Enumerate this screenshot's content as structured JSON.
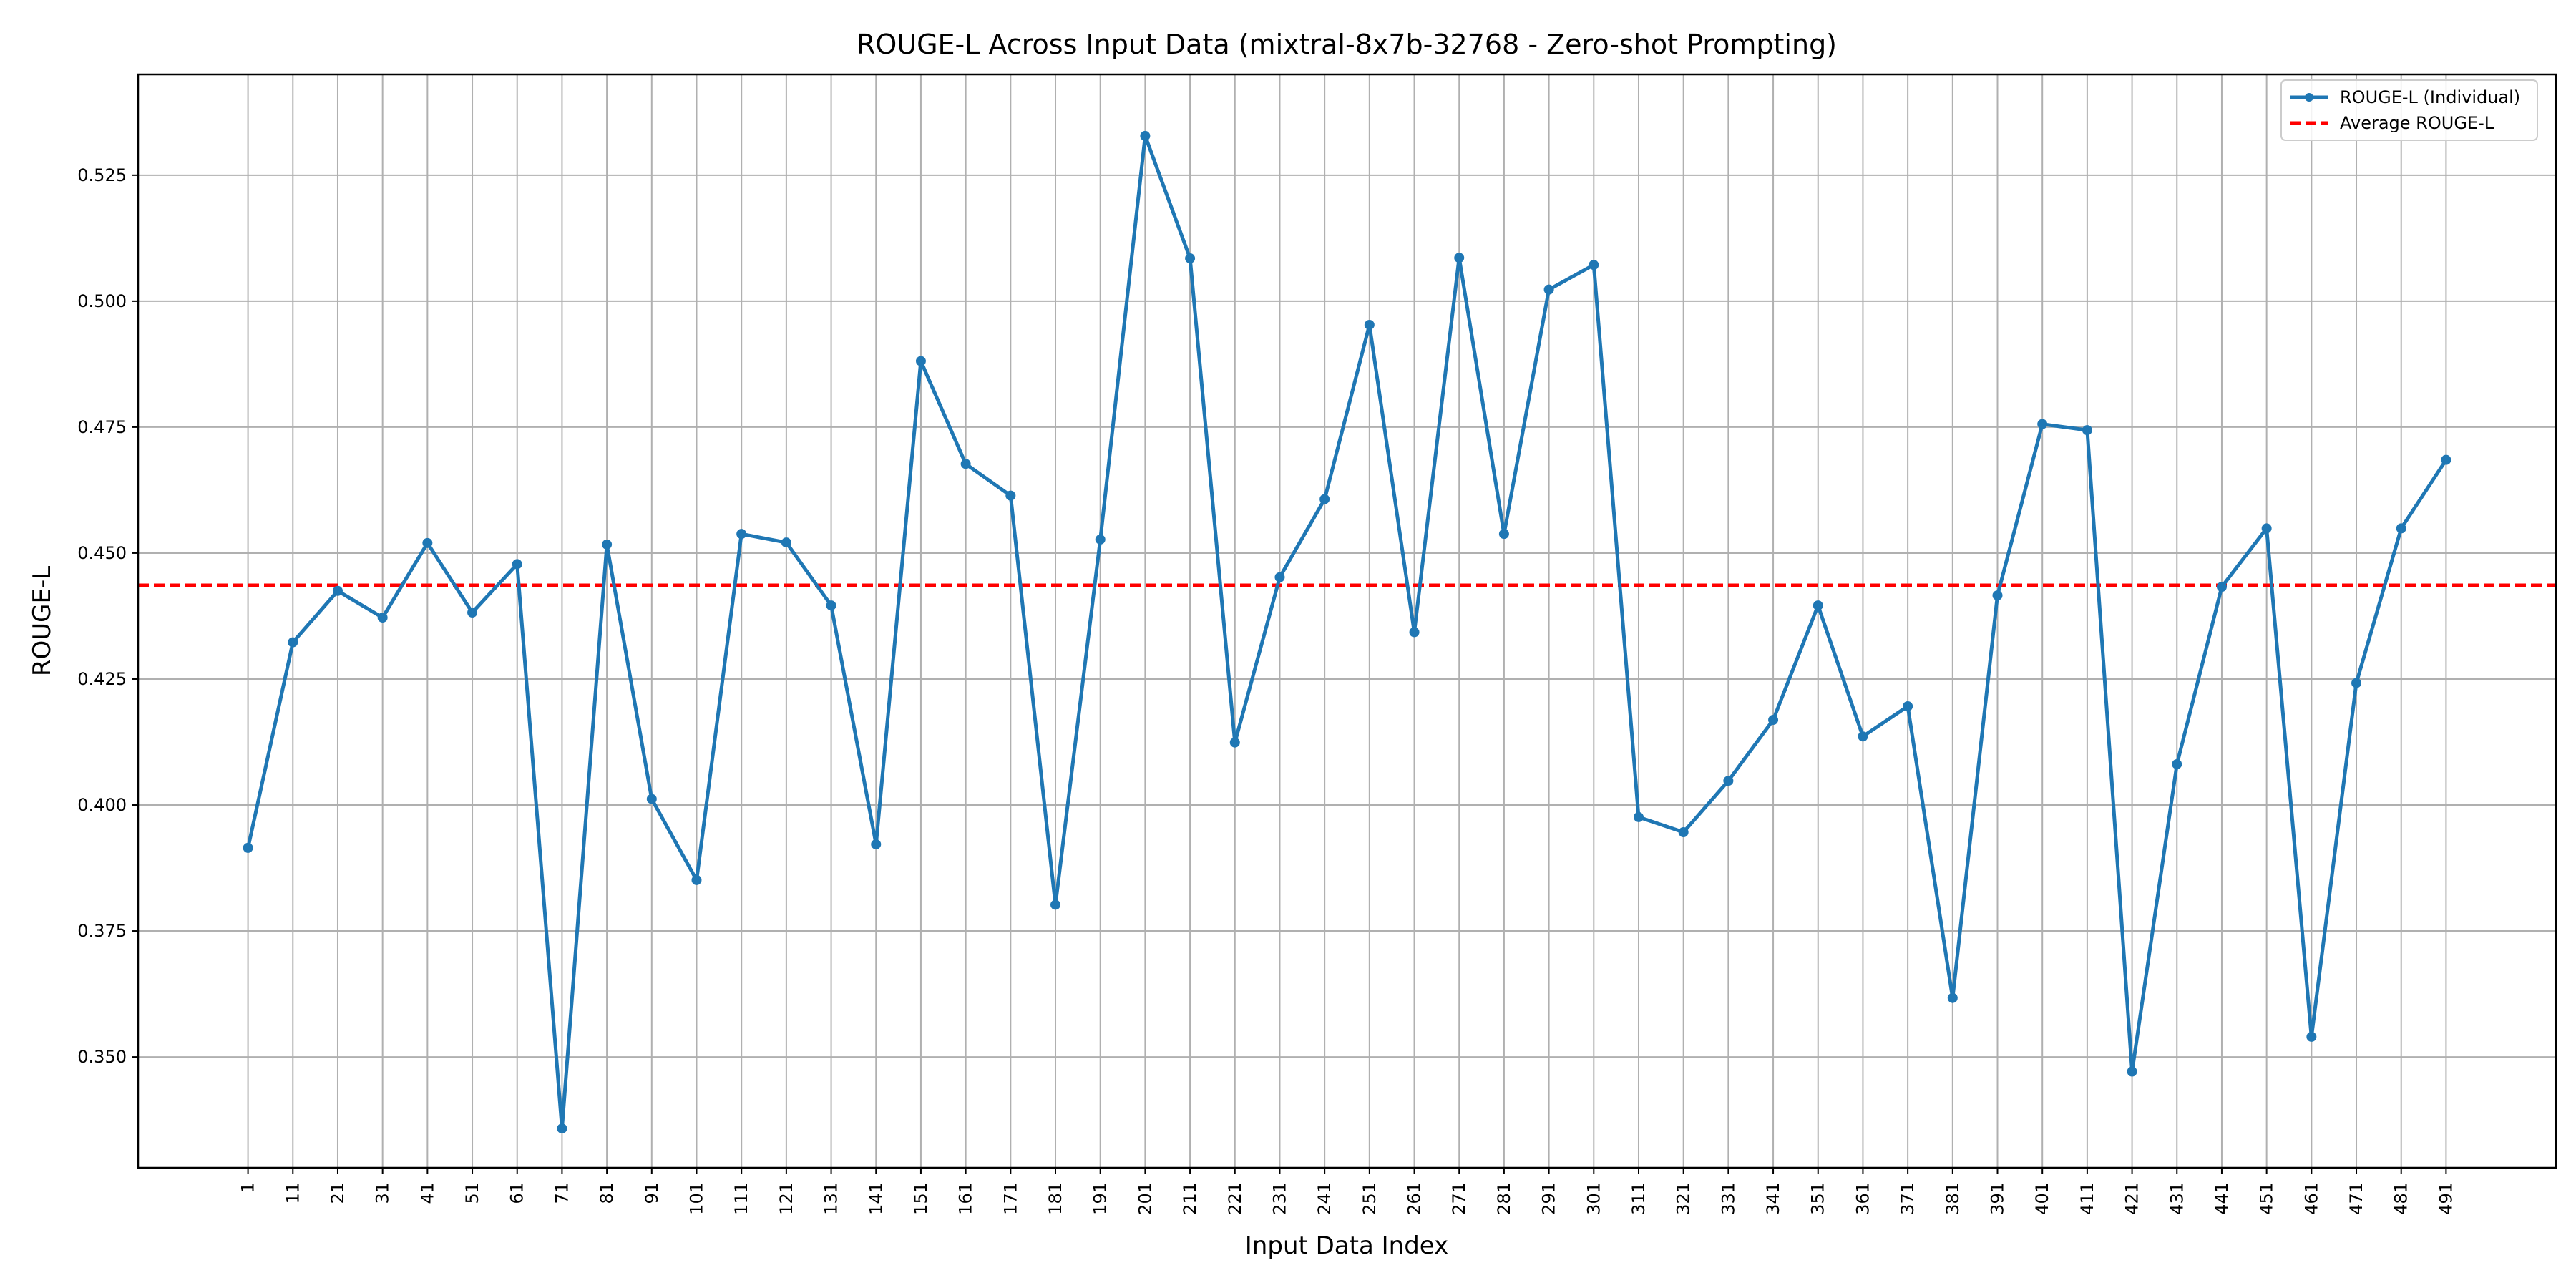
{
  "chart_data": {
    "type": "line",
    "title": "ROUGE-L Across Input Data (mixtral-8x7b-32768 - Zero-shot Prompting)",
    "xlabel": "Input Data Index",
    "ylabel": "ROUGE-L",
    "grid": true,
    "legend_position": "top-right",
    "ylim": [
      0.328,
      0.545
    ],
    "yticks": [
      "0.350",
      "0.375",
      "0.400",
      "0.425",
      "0.450",
      "0.475",
      "0.500",
      "0.525"
    ],
    "x": [
      1,
      11,
      21,
      31,
      41,
      51,
      61,
      71,
      81,
      91,
      101,
      111,
      121,
      131,
      141,
      151,
      161,
      171,
      181,
      191,
      201,
      211,
      221,
      231,
      241,
      251,
      261,
      271,
      281,
      291,
      301,
      311,
      321,
      331,
      341,
      351,
      361,
      371,
      381,
      391,
      401,
      411,
      421,
      431,
      441,
      451,
      461,
      471,
      481,
      491
    ],
    "series": [
      {
        "name": "ROUGE-L (Individual)",
        "color": "#1f77b4",
        "style": "solid-with-markers",
        "values": [
          0.3915,
          0.4323,
          0.4425,
          0.4372,
          0.452,
          0.4382,
          0.4478,
          0.3358,
          0.4517,
          0.4012,
          0.3851,
          0.4538,
          0.4521,
          0.4396,
          0.3922,
          0.4881,
          0.4677,
          0.4614,
          0.3802,
          0.4527,
          0.5328,
          0.5085,
          0.4124,
          0.4452,
          0.4607,
          0.4953,
          0.4343,
          0.5086,
          0.4538,
          0.5023,
          0.5072,
          0.3976,
          0.3946,
          0.4048,
          0.4169,
          0.4396,
          0.4136,
          0.4196,
          0.3617,
          0.4416,
          0.4756,
          0.4744,
          0.3471,
          0.4081,
          0.4433,
          0.4549,
          0.354,
          0.4242,
          0.4549,
          0.4685
        ]
      },
      {
        "name": "Average ROUGE-L",
        "color": "#ff0000",
        "style": "dashed",
        "value": 0.4436
      }
    ]
  }
}
